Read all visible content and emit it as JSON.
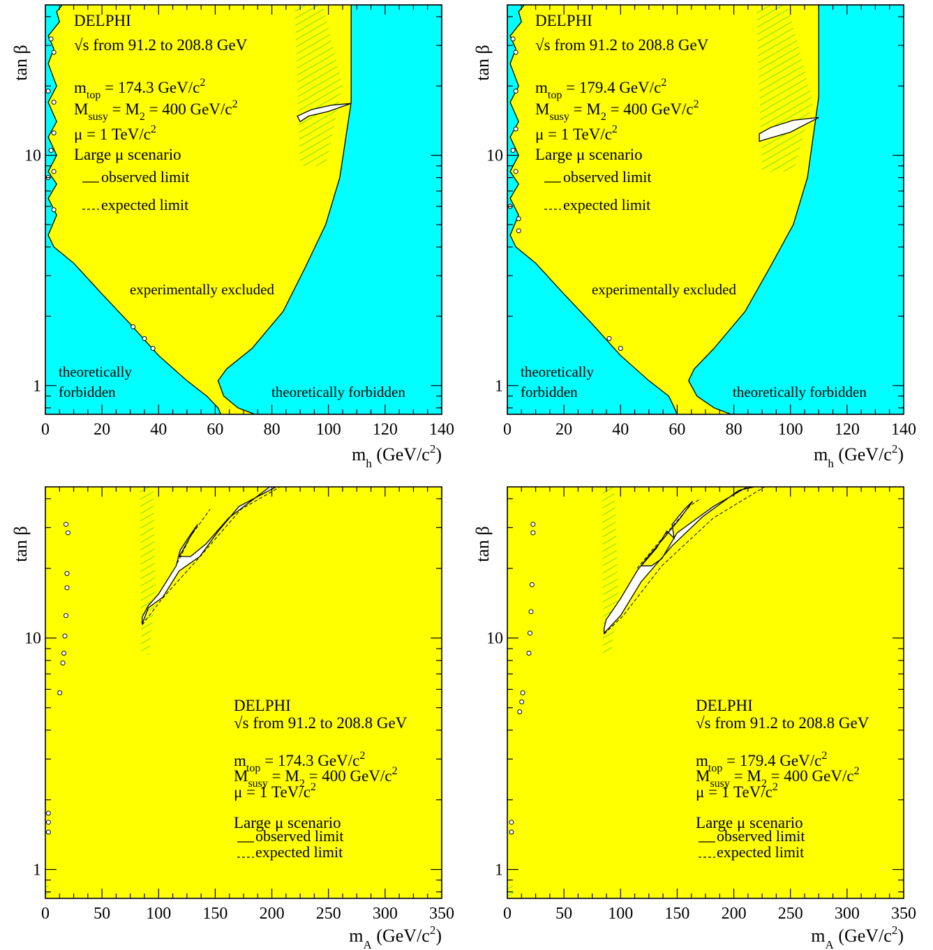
{
  "colors": {
    "excluded": "#ffff00",
    "forbidden": "#00ffff",
    "hole": "#ffffff",
    "hatch": "#33cc33",
    "line": "#000000"
  },
  "chart_data": [
    {
      "type": "area",
      "experiment": "DELPHI",
      "energy": "√s from 91.2 to 208.8 GeV",
      "mtop": "m_top = 174.3 GeV/c²",
      "msusy": "M_susy = M_2 = 400 GeV/c²",
      "mu": "μ = 1 TeV/c²",
      "scenario": "Large μ scenario",
      "legend_observed": "observed limit",
      "legend_expected": "expected limit",
      "region_excluded": "experimentally excluded",
      "region_forbidden_left_1": "theoretically",
      "region_forbidden_left_2": "forbidden",
      "region_forbidden_right": "theoretically forbidden",
      "xlabel": "m_h (GeV/c²)",
      "ylabel": "tan β",
      "xlim": [
        0,
        140
      ],
      "ylim": [
        0.75,
        45
      ],
      "yscale": "log",
      "xticks": [
        "0",
        "20",
        "40",
        "60",
        "80",
        "100",
        "120",
        "140"
      ],
      "yticks": [
        "1",
        "10"
      ],
      "forbidden_left": [
        [
          1.5,
          45
        ],
        [
          6,
          45
        ],
        [
          4,
          42
        ],
        [
          5,
          38
        ],
        [
          1,
          33
        ],
        [
          3,
          29
        ],
        [
          1,
          25
        ],
        [
          4,
          20
        ],
        [
          1,
          17
        ],
        [
          4,
          14
        ],
        [
          1,
          12
        ],
        [
          4,
          10
        ],
        [
          1,
          8.5
        ],
        [
          4,
          7.5
        ],
        [
          1,
          6.5
        ],
        [
          4,
          5.5
        ],
        [
          1,
          4.5
        ],
        [
          3,
          4.0
        ],
        [
          10,
          3.4
        ],
        [
          20,
          2.5
        ],
        [
          30,
          1.85
        ],
        [
          40,
          1.35
        ],
        [
          50,
          1.05
        ],
        [
          57,
          0.9
        ],
        [
          61,
          0.8
        ],
        [
          62,
          0.75
        ],
        [
          0,
          0.75
        ],
        [
          0,
          45
        ]
      ],
      "forbidden_right": [
        [
          108,
          45
        ],
        [
          108,
          17
        ],
        [
          104,
          8
        ],
        [
          99,
          5
        ],
        [
          92,
          3.3
        ],
        [
          84,
          2.1
        ],
        [
          73,
          1.45
        ],
        [
          64,
          1.18
        ],
        [
          61,
          1.05
        ],
        [
          63,
          0.9
        ],
        [
          68,
          0.8
        ],
        [
          74,
          0.75
        ],
        [
          140,
          0.75
        ],
        [
          140,
          45
        ]
      ],
      "hole": [
        [
          90,
          14
        ],
        [
          93,
          14.8
        ],
        [
          100,
          15.5
        ],
        [
          108,
          16.8
        ],
        [
          101,
          16.5
        ],
        [
          94,
          15.8
        ],
        [
          89,
          14.8
        ]
      ],
      "hatch": [
        [
          88,
          45
        ],
        [
          98,
          45
        ],
        [
          105,
          20
        ],
        [
          99,
          9
        ],
        [
          90,
          9
        ]
      ],
      "circles": [
        [
          2,
          32
        ],
        [
          3,
          28
        ],
        [
          1,
          19
        ],
        [
          3,
          17
        ],
        [
          3,
          12.5
        ],
        [
          2,
          10.5
        ],
        [
          3,
          8.5
        ],
        [
          1,
          8
        ],
        [
          3,
          5.8
        ],
        [
          31,
          1.8
        ],
        [
          35,
          1.6
        ],
        [
          38,
          1.45
        ]
      ]
    },
    {
      "type": "area",
      "experiment": "DELPHI",
      "energy": "√s from 91.2 to 208.8 GeV",
      "mtop": "m_top = 179.4 GeV/c²",
      "msusy": "M_susy = M_2 = 400 GeV/c²",
      "mu": "μ = 1 TeV/c²",
      "scenario": "Large μ scenario",
      "legend_observed": "observed limit",
      "legend_expected": "expected limit",
      "region_excluded": "experimentally excluded",
      "region_forbidden_left_1": "theoretically",
      "region_forbidden_left_2": "forbidden",
      "region_forbidden_right": "theoretically forbidden",
      "xlabel": "m_h (GeV/c²)",
      "ylabel": "tan β",
      "xlim": [
        0,
        140
      ],
      "ylim": [
        0.75,
        45
      ],
      "yscale": "log",
      "xticks": [
        "0",
        "20",
        "40",
        "60",
        "80",
        "100",
        "120",
        "140"
      ],
      "yticks": [
        "1",
        "10"
      ],
      "forbidden_left": [
        [
          1.5,
          45
        ],
        [
          6,
          45
        ],
        [
          4,
          42
        ],
        [
          5,
          38
        ],
        [
          1,
          33
        ],
        [
          3,
          29
        ],
        [
          1,
          25
        ],
        [
          4,
          20
        ],
        [
          1,
          17
        ],
        [
          4,
          14
        ],
        [
          1,
          12
        ],
        [
          4,
          10
        ],
        [
          1,
          8.5
        ],
        [
          4,
          7.5
        ],
        [
          1,
          6.5
        ],
        [
          4,
          5.5
        ],
        [
          1,
          4.5
        ],
        [
          3,
          4.0
        ],
        [
          10,
          3.4
        ],
        [
          20,
          2.5
        ],
        [
          30,
          1.85
        ],
        [
          40,
          1.35
        ],
        [
          50,
          1.05
        ],
        [
          57,
          0.9
        ],
        [
          59,
          0.8
        ],
        [
          60,
          0.75
        ],
        [
          0,
          0.75
        ],
        [
          0,
          45
        ]
      ],
      "forbidden_right": [
        [
          110,
          45
        ],
        [
          110,
          18
        ],
        [
          106,
          8
        ],
        [
          101,
          5
        ],
        [
          93,
          3.3
        ],
        [
          84,
          2.1
        ],
        [
          73,
          1.45
        ],
        [
          66,
          1.18
        ],
        [
          64,
          1.05
        ],
        [
          67,
          0.9
        ],
        [
          73,
          0.8
        ],
        [
          79,
          0.75
        ],
        [
          140,
          0.75
        ],
        [
          140,
          45
        ]
      ],
      "hole": [
        [
          89,
          11.5
        ],
        [
          92,
          11.8
        ],
        [
          100,
          12.6
        ],
        [
          110,
          14.6
        ],
        [
          101,
          14.2
        ],
        [
          93,
          13.2
        ],
        [
          89,
          12.4
        ]
      ],
      "hatch": [
        [
          88,
          45
        ],
        [
          99,
          45
        ],
        [
          108,
          17
        ],
        [
          101,
          8.5
        ],
        [
          90,
          8.5
        ]
      ],
      "circles": [
        [
          2,
          32
        ],
        [
          3,
          28
        ],
        [
          3,
          19
        ],
        [
          3,
          13
        ],
        [
          2,
          10.5
        ],
        [
          3,
          8.5
        ],
        [
          1,
          6
        ],
        [
          4,
          5.3
        ],
        [
          4,
          4.7
        ],
        [
          36,
          1.6
        ],
        [
          40,
          1.45
        ]
      ]
    },
    {
      "type": "area",
      "experiment": "DELPHI",
      "energy": "√s from 91.2 to 208.8 GeV",
      "mtop": "m_top = 174.3 GeV/c²",
      "msusy": "M_susy = M_2 = 400 GeV/c²",
      "mu": "μ = 1 TeV/c²",
      "scenario": "Large μ scenario",
      "legend_observed": "observed limit",
      "legend_expected": "expected limit",
      "xlabel": "m_A (GeV/c²)",
      "ylabel": "tan β",
      "xlim": [
        0,
        385
      ],
      "ylim": [
        0.75,
        45
      ],
      "yscale": "log",
      "xticks": [
        "0",
        "50",
        "100",
        "150",
        "200",
        "250",
        "300",
        "350"
      ],
      "yticks": [
        "1",
        "10"
      ],
      "hole": [
        [
          94,
          11.5
        ],
        [
          100,
          13.5
        ],
        [
          114,
          15.0
        ],
        [
          130,
          19.5
        ],
        [
          150,
          22.5
        ],
        [
          168,
          29
        ],
        [
          188,
          37
        ],
        [
          224,
          45
        ],
        [
          218,
          45
        ],
        [
          178,
          33
        ],
        [
          156,
          25.5
        ],
        [
          141,
          22.5
        ],
        [
          130,
          22.5
        ],
        [
          140,
          27
        ],
        [
          148,
          31
        ],
        [
          141,
          28
        ],
        [
          131,
          24
        ],
        [
          127,
          20.5
        ],
        [
          110,
          15.5
        ],
        [
          100,
          13.8
        ],
        [
          94,
          12.3
        ]
      ],
      "expected_line": [
        [
          94,
          11.4
        ],
        [
          114,
          14.9
        ],
        [
          150,
          22.4
        ],
        [
          190,
          36
        ],
        [
          228,
          45
        ]
      ],
      "expected_line2": [
        [
          128,
          21
        ],
        [
          141,
          27.5
        ],
        [
          160,
          36
        ]
      ],
      "hatch": [
        [
          92,
          45
        ],
        [
          105,
          45
        ],
        [
          107,
          16
        ],
        [
          101,
          8.5
        ],
        [
          93,
          8.5
        ]
      ],
      "hatch_small": [
        [
          0,
          0.75
        ],
        [
          6,
          0.75
        ],
        [
          4,
          0.85
        ],
        [
          0,
          0.85
        ]
      ],
      "circles": [
        [
          20,
          31
        ],
        [
          22,
          28.5
        ],
        [
          21,
          19
        ],
        [
          21,
          16.5
        ],
        [
          20,
          12.5
        ],
        [
          19,
          10.2
        ],
        [
          18,
          8.6
        ],
        [
          17,
          7.8
        ],
        [
          14,
          5.8
        ],
        [
          3,
          1.75
        ],
        [
          3,
          1.6
        ],
        [
          3,
          1.45
        ]
      ]
    },
    {
      "type": "area",
      "experiment": "DELPHI",
      "energy": "√s from 91.2 to 208.8 GeV",
      "mtop": "m_top = 179.4 GeV/c²",
      "msusy": "M_susy = M_2 = 400 GeV/c²",
      "mu": "μ = 1 TeV/c²",
      "scenario": "Large μ scenario",
      "legend_observed": "observed limit",
      "legend_expected": "expected limit",
      "xlabel": "m_A (GeV/c²)",
      "ylabel": "tan β",
      "xlim": [
        0,
        385
      ],
      "ylim": [
        0.75,
        45
      ],
      "yscale": "log",
      "xticks": [
        "0",
        "50",
        "100",
        "150",
        "200",
        "250",
        "300",
        "350"
      ],
      "yticks": [
        "1",
        "10"
      ],
      "hole": [
        [
          94,
          10.5
        ],
        [
          110,
          12.5
        ],
        [
          130,
          17.5
        ],
        [
          160,
          25
        ],
        [
          190,
          33.5
        ],
        [
          225,
          43.5
        ],
        [
          240,
          45
        ],
        [
          233,
          45
        ],
        [
          200,
          37
        ],
        [
          165,
          28.5
        ],
        [
          150,
          22
        ],
        [
          140,
          20.5
        ],
        [
          130,
          20.5
        ],
        [
          145,
          24.5
        ],
        [
          155,
          29
        ],
        [
          162,
          27
        ],
        [
          160,
          31
        ],
        [
          172,
          36
        ],
        [
          180,
          39
        ],
        [
          168,
          33
        ],
        [
          152,
          27
        ],
        [
          135,
          22
        ],
        [
          126,
          19.5
        ],
        [
          110,
          14.8
        ],
        [
          96,
          12.0
        ],
        [
          94,
          11.0
        ]
      ],
      "expected_line": [
        [
          94,
          10.4
        ],
        [
          112,
          12.4
        ],
        [
          150,
          20.5
        ],
        [
          200,
          33
        ],
        [
          250,
          45
        ]
      ],
      "expected_line2": [
        [
          126,
          20
        ],
        [
          152,
          27.5
        ],
        [
          178,
          37.5
        ],
        [
          188,
          40
        ]
      ],
      "hatch": [
        [
          92,
          45
        ],
        [
          104,
          45
        ],
        [
          108,
          16
        ],
        [
          101,
          8.5
        ],
        [
          93,
          8.5
        ]
      ],
      "hatch_small": [
        [
          0,
          0.75
        ],
        [
          8,
          0.75
        ],
        [
          6,
          0.85
        ],
        [
          0,
          0.85
        ]
      ],
      "circles": [
        [
          25,
          31
        ],
        [
          25,
          28.5
        ],
        [
          24,
          17
        ],
        [
          23,
          13
        ],
        [
          22,
          10.5
        ],
        [
          21,
          8.6
        ],
        [
          15,
          5.8
        ],
        [
          14,
          5.3
        ],
        [
          12,
          4.8
        ],
        [
          4,
          1.6
        ],
        [
          4,
          1.45
        ]
      ]
    }
  ]
}
